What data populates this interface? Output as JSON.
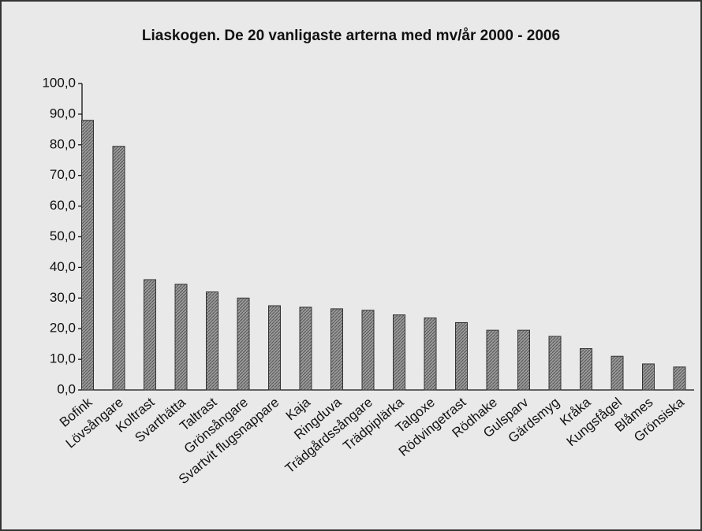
{
  "chart_data": {
    "type": "bar",
    "title": "Liaskogen. De 20 vanligaste arterna med mv/år 2000 - 2006",
    "categories": [
      "Bofink",
      "Lövsångare",
      "Koltrast",
      "Svarthätta",
      "Taltrast",
      "Grönsångare",
      "Svartvit flugsnappare",
      "Kaja",
      "Ringduva",
      "Trädgårdssångare",
      "Trädpiplärka",
      "Talgoxe",
      "Rödvingetrast",
      "Rödhake",
      "Gulsparv",
      "Gärdsmyg",
      "Kråka",
      "Kungsfågel",
      "Blåmes",
      "Grönsiska"
    ],
    "values": [
      88,
      79.5,
      36,
      34.5,
      32,
      30,
      27.5,
      27,
      26.5,
      26,
      24.5,
      23.5,
      22,
      19.5,
      19.5,
      17.5,
      13.5,
      11,
      8.5,
      7.5
    ],
    "color": "#8a8a8a",
    "ylim": [
      0,
      100
    ],
    "yticks": [
      {
        "value": 0,
        "label": "0,0"
      },
      {
        "value": 10,
        "label": "10,0"
      },
      {
        "value": 20,
        "label": "20,0"
      },
      {
        "value": 30,
        "label": "30,0"
      },
      {
        "value": 40,
        "label": "40,0"
      },
      {
        "value": 50,
        "label": "50,0"
      },
      {
        "value": 60,
        "label": "60,0"
      },
      {
        "value": 70,
        "label": "70,0"
      },
      {
        "value": 80,
        "label": "80,0"
      },
      {
        "value": 90,
        "label": "90,0"
      },
      {
        "value": 100,
        "label": "100,0"
      }
    ],
    "grid": false
  }
}
